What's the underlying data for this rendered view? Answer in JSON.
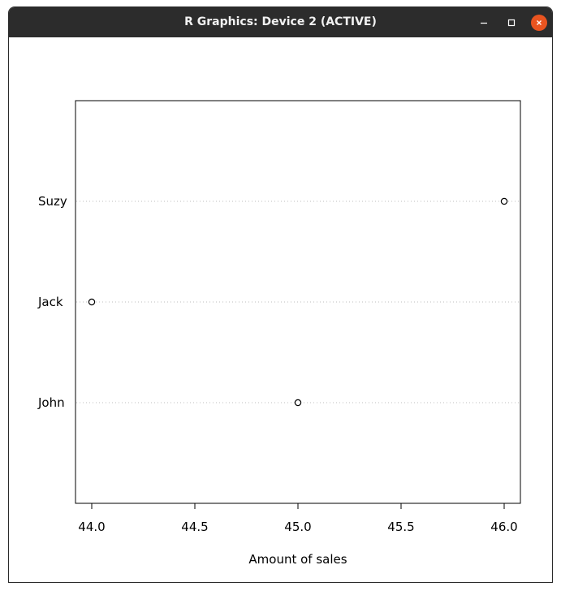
{
  "window": {
    "title": "R Graphics: Device 2 (ACTIVE)",
    "controls": [
      "minimize-icon",
      "maximize-icon",
      "close-icon"
    ],
    "close_color": "#e95420"
  },
  "chart_data": {
    "type": "scatter",
    "subtype": "dotchart",
    "categories": [
      "Suzy",
      "Jack",
      "John"
    ],
    "values": [
      46.0,
      44.0,
      45.0
    ],
    "xlabel": "Amount of sales",
    "ylabel": "",
    "title": "",
    "xlim": [
      44.0,
      46.0
    ],
    "x_ticks": [
      "44.0",
      "44.5",
      "45.0",
      "45.5",
      "46.0"
    ],
    "grid": "dotted horizontal guide lines",
    "marker": "open-circle"
  }
}
